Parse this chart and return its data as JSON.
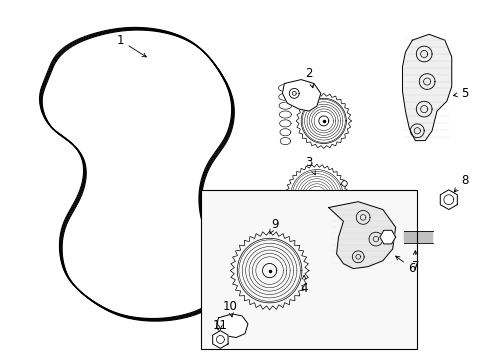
{
  "background_color": "#ffffff",
  "line_color": "#000000",
  "text_color": "#000000",
  "label_fontsize": 8.5,
  "fig_width": 4.89,
  "fig_height": 3.6,
  "belt_color": "#333333",
  "component_color": "#333333"
}
